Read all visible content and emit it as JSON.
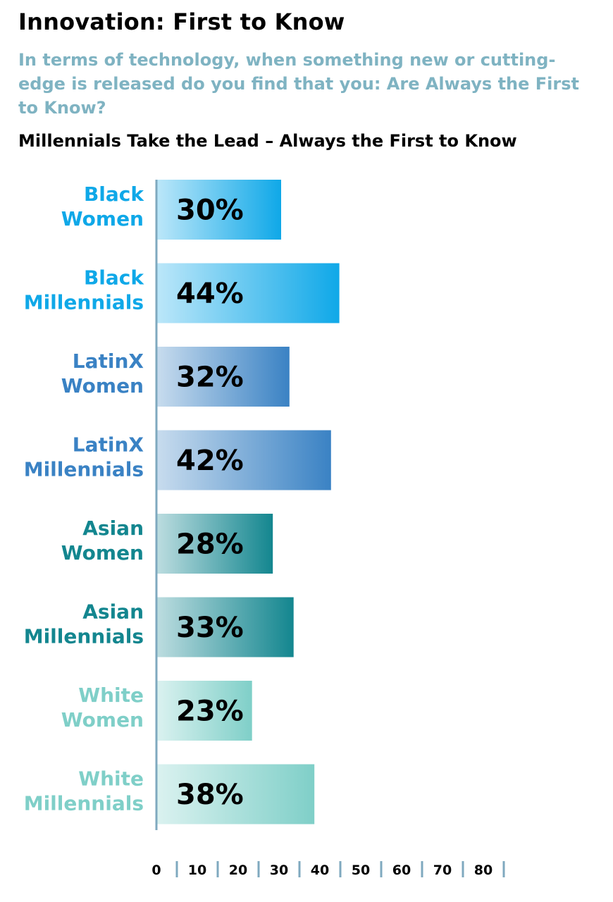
{
  "title": "Innovation: First to Know",
  "subtitle": "In terms of technology, when something new or cutting-edge is released do you find that you: Are Always the First to Know?",
  "chart_heading": "Millennials Take the Lead – Always the First to Know",
  "colors": {
    "title": "#000000",
    "subtitle": "#7fb3c2",
    "axis": "#7fa9bf",
    "black_group": "#0fa8e8",
    "latinx_group": "#3a82c4",
    "asian_group": "#13868f",
    "white_group": "#7fcfc8"
  },
  "chart_data": {
    "type": "bar",
    "orientation": "horizontal",
    "title": "Millennials Take the Lead – Always the First to Know",
    "xlabel": "",
    "ylabel": "",
    "xlim": [
      0,
      80
    ],
    "grid": false,
    "categories": [
      [
        "Black",
        "Women"
      ],
      [
        "Black",
        "Millennials"
      ],
      [
        "LatinX",
        "Women"
      ],
      [
        "LatinX",
        "Millennials"
      ],
      [
        "Asian",
        "Women"
      ],
      [
        "Asian",
        "Millennials"
      ],
      [
        "White",
        "Women"
      ],
      [
        "White",
        "Millennials"
      ]
    ],
    "values": [
      30,
      44,
      32,
      42,
      28,
      33,
      23,
      38
    ],
    "value_labels": [
      "30%",
      "44%",
      "32%",
      "42%",
      "28%",
      "33%",
      "23%",
      "38%"
    ],
    "group_colors": [
      "black_group",
      "black_group",
      "latinx_group",
      "latinx_group",
      "asian_group",
      "asian_group",
      "white_group",
      "white_group"
    ],
    "x_ticks": [
      "0",
      "10",
      "20",
      "30",
      "40",
      "50",
      "60",
      "70",
      "80"
    ]
  }
}
